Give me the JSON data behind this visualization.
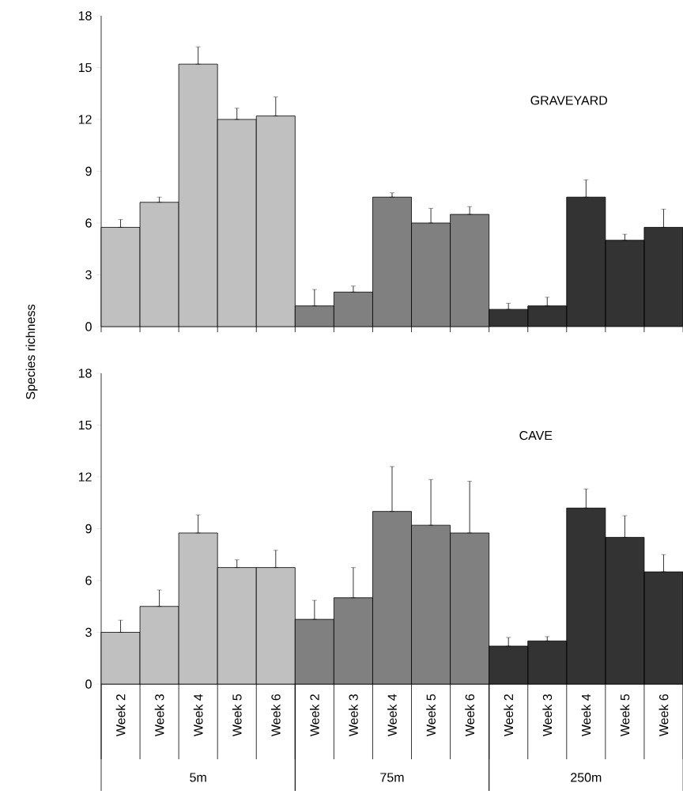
{
  "chart_data": [
    {
      "type": "bar",
      "title": "GRAVEYARD",
      "ylabel": "Species richness",
      "categories": [
        null,
        null,
        null,
        null,
        null,
        null,
        null,
        null,
        null,
        null,
        null,
        null,
        null,
        null,
        null
      ],
      "series": [
        {
          "color": "#c0c0c0",
          "values": [
            5.75,
            7.2,
            15.2,
            12.0,
            12.2,
            null,
            null,
            null,
            null,
            null,
            null,
            null,
            null,
            null,
            null
          ],
          "errors": [
            [
              5.75,
              6.2
            ],
            [
              7.2,
              7.5
            ],
            [
              15.2,
              16.2
            ],
            [
              12.0,
              12.65
            ],
            [
              12.2,
              13.3
            ],
            null,
            null,
            null,
            null,
            null,
            null,
            null,
            null,
            null,
            null
          ]
        },
        {
          "color": "#808080",
          "values": [
            null,
            null,
            null,
            null,
            null,
            1.2,
            2.0,
            7.5,
            6.0,
            6.5,
            null,
            null,
            null,
            null,
            null
          ],
          "errors": [
            null,
            null,
            null,
            null,
            null,
            [
              1.2,
              2.15
            ],
            [
              2.0,
              2.35
            ],
            [
              7.5,
              7.75
            ],
            [
              6.0,
              6.85
            ],
            [
              6.5,
              6.95
            ],
            null,
            null,
            null,
            null,
            null
          ]
        },
        {
          "color": "#333333",
          "values": [
            null,
            null,
            null,
            null,
            null,
            null,
            null,
            null,
            null,
            null,
            1.0,
            1.2,
            7.5,
            5.0,
            5.75
          ],
          "errors": [
            null,
            null,
            null,
            null,
            null,
            null,
            null,
            null,
            null,
            null,
            [
              1.0,
              1.35
            ],
            [
              1.2,
              1.7
            ],
            [
              7.5,
              8.5
            ],
            [
              5.0,
              5.35
            ],
            [
              5.75,
              6.8
            ]
          ]
        }
      ],
      "ylim": [
        0,
        18
      ],
      "yticks": [
        0,
        3,
        6,
        9,
        12,
        15,
        18
      ],
      "tick_labels": "y"
    },
    {
      "type": "bar",
      "title": "CAVE",
      "categories": [
        "Week 2",
        "Week 3",
        "Week 4",
        "Week 5",
        "Week 6",
        "Week 2",
        "Week 3",
        "Week 4",
        "Week 5",
        "Week 6",
        "Week 2",
        "Week 3",
        "Week 4",
        "Week 5",
        "Week 6"
      ],
      "series": [
        {
          "color": "#c0c0c0",
          "values": [
            3.0,
            4.5,
            8.75,
            6.75,
            6.75,
            null,
            null,
            null,
            null,
            null,
            null,
            null,
            null,
            null,
            null
          ],
          "errors": [
            [
              3.0,
              3.7
            ],
            [
              4.5,
              5.45
            ],
            [
              8.75,
              9.8
            ],
            [
              6.75,
              7.2
            ],
            [
              6.75,
              7.75
            ],
            null,
            null,
            null,
            null,
            null,
            null,
            null,
            null,
            null,
            null
          ]
        },
        {
          "color": "#808080",
          "values": [
            null,
            null,
            null,
            null,
            null,
            3.75,
            5.0,
            10.0,
            9.2,
            8.75,
            null,
            null,
            null,
            null,
            null
          ],
          "errors": [
            null,
            null,
            null,
            null,
            null,
            [
              3.75,
              4.85
            ],
            [
              5.0,
              6.75
            ],
            [
              10.0,
              12.6
            ],
            [
              9.2,
              11.85
            ],
            [
              8.75,
              11.75
            ],
            null,
            null,
            null,
            null,
            null
          ]
        },
        {
          "color": "#333333",
          "values": [
            null,
            null,
            null,
            null,
            null,
            null,
            null,
            null,
            null,
            null,
            2.2,
            2.5,
            10.2,
            8.5,
            6.5
          ],
          "errors": [
            null,
            null,
            null,
            null,
            null,
            null,
            null,
            null,
            null,
            null,
            [
              2.2,
              2.7
            ],
            [
              2.5,
              2.75
            ],
            [
              10.2,
              11.3
            ],
            [
              8.5,
              9.75
            ],
            [
              6.5,
              7.5
            ]
          ]
        }
      ],
      "ylim": [
        0,
        18
      ],
      "yticks": [
        0,
        3,
        6,
        9,
        12,
        15,
        18
      ],
      "annotations": [
        "5m",
        "75m",
        "250m"
      ]
    }
  ]
}
